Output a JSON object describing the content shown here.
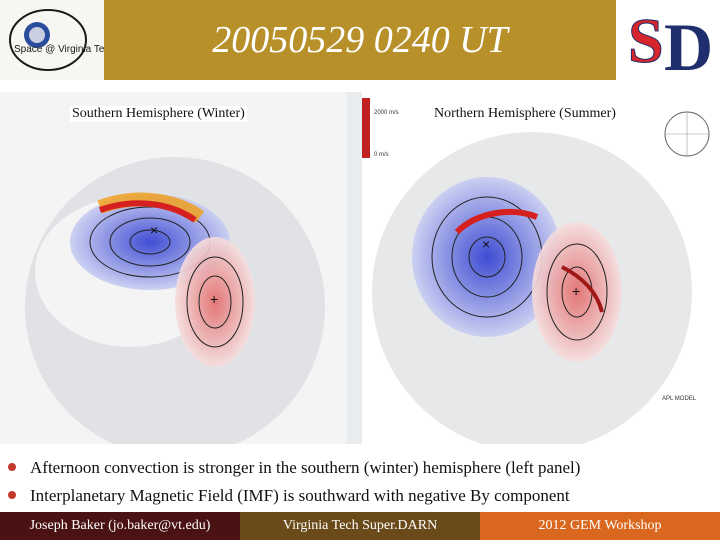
{
  "header": {
    "title": "20050529  0240 UT",
    "left_logo": "Space @ Virginia Tech",
    "right_logo": "SD"
  },
  "panels": {
    "left_label": "Southern Hemisphere (Winter)",
    "right_label": "Northern Hemisphere (Summer)",
    "right_colorbar_values": [
      "2000 m/s",
      "0 m/s"
    ],
    "right_model_label": "APL MODEL"
  },
  "bullets": [
    "Afternoon convection is stronger in the southern (winter) hemisphere (left panel)",
    "Interplanetary Magnetic Field (IMF) is southward with negative By component"
  ],
  "footer": {
    "left": "Joseph Baker (jo.baker@vt.edu)",
    "middle": "Virginia Tech Super.DARN",
    "right": "2012 GEM Workshop"
  },
  "colors": {
    "header_band": "#b8902a",
    "footer_left": "#4a1212",
    "footer_mid": "#6b4a1a",
    "footer_right": "#d9671e",
    "bullet": "#c0392b"
  }
}
